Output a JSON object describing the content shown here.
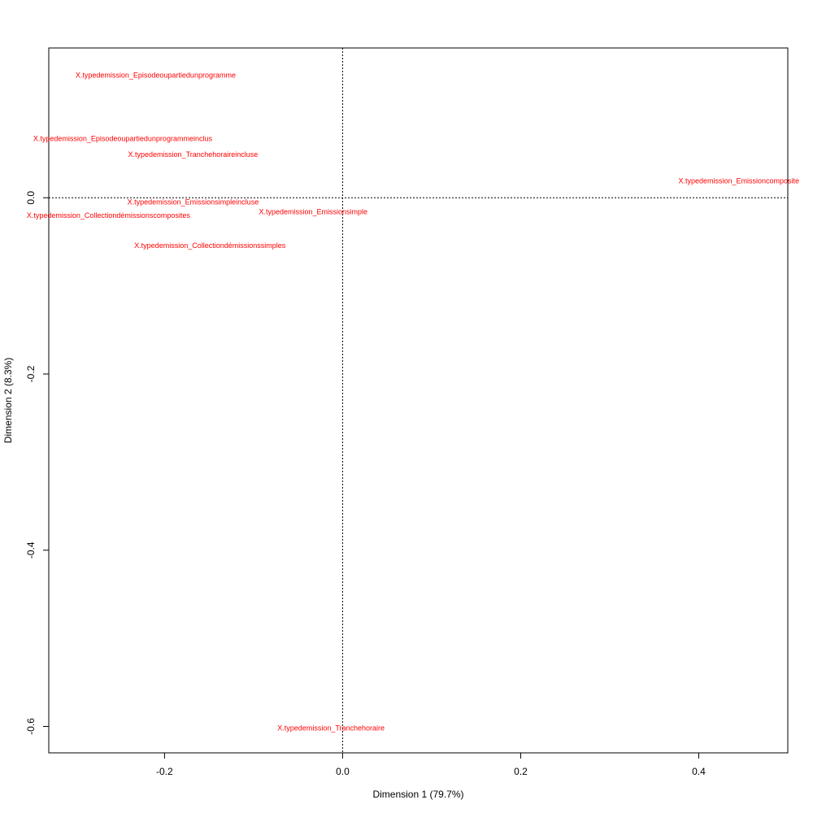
{
  "chart_data": {
    "type": "scatter",
    "title": "",
    "xlabel": "Dimension 1 (79.7%)",
    "ylabel": "Dimension 2 (8.3%)",
    "xlim": [
      -0.33,
      0.5
    ],
    "ylim": [
      -0.63,
      0.17
    ],
    "x_ticks": [
      -0.2,
      0.0,
      0.2,
      0.4
    ],
    "y_ticks": [
      -0.6,
      -0.4,
      -0.2,
      0.0
    ],
    "x_tick_labels": [
      "-0.2",
      "0.0",
      "0.2",
      "0.4"
    ],
    "y_tick_labels": [
      "-0.6",
      "-0.4",
      "-0.2",
      "0.0"
    ],
    "reference_lines": {
      "x": 0,
      "y": 0,
      "style": "dotted"
    },
    "label_color": "#ff0000",
    "points": [
      {
        "label": "X.typedemission_Episodeoupartiedunprogramme",
        "x": -0.21,
        "y": 0.139
      },
      {
        "label": "X.typedemission_Episodeoupartiedunprogrammeinclus",
        "x": -0.247,
        "y": 0.067
      },
      {
        "label": "X.typedemission_Tranchehoraireincluse",
        "x": -0.168,
        "y": 0.049
      },
      {
        "label": "X.typedemission_Emissioncomposite",
        "x": 0.445,
        "y": 0.019
      },
      {
        "label": "X.typedemission_Emissionsimpleincluse",
        "x": -0.168,
        "y": -0.005
      },
      {
        "label": "X.typedemission_Collectiondémissionscomposites",
        "x": -0.263,
        "y": -0.02
      },
      {
        "label": "X.typedemission_Emissionsimple",
        "x": -0.033,
        "y": -0.016
      },
      {
        "label": "X.typedemission_Collectiondémissionssimples",
        "x": -0.149,
        "y": -0.054
      },
      {
        "label": "X.typedemission_Tranchehoraire",
        "x": -0.013,
        "y": -0.602
      }
    ]
  }
}
